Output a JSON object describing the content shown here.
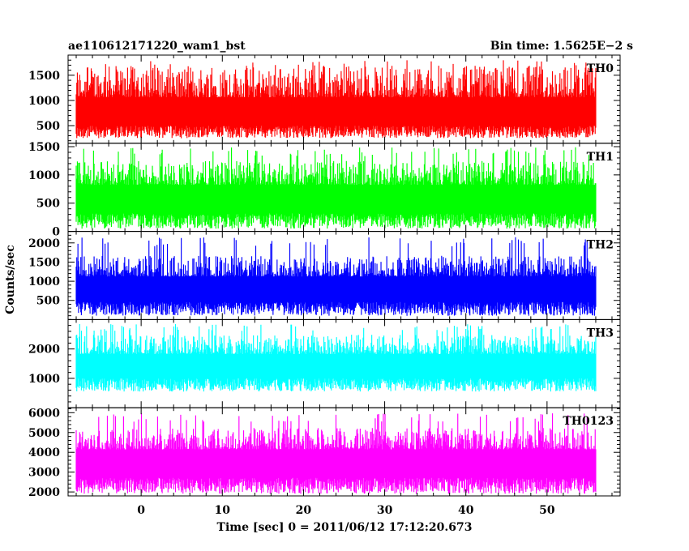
{
  "chart_data": {
    "type": "line",
    "title_left": "ae110612171220_wam1_bst",
    "title_right": "Bin time: 1.5625E−2 s",
    "xlabel": "Time [sec] 0 = 2011/06/12 17:12:20.673",
    "ylabel": "Counts/sec",
    "xlim": [
      -9,
      59
    ],
    "xticks": [
      0,
      10,
      20,
      30,
      40,
      50
    ],
    "x_data_range": [
      -8,
      56
    ],
    "bin_time_s": 0.015625,
    "panels": [
      {
        "name": "TH0",
        "color": "#ff0000",
        "ylim": [
          150,
          1900
        ],
        "yticks": [
          500,
          1000,
          1500
        ],
        "baseline": 800,
        "low_spread": 550,
        "high_spread": 1050,
        "occasional_peak": 1800
      },
      {
        "name": "TH1",
        "color": "#00ff00",
        "ylim": [
          0,
          1560
        ],
        "yticks": [
          0,
          500,
          1000,
          1500
        ],
        "baseline": 650,
        "low_spread": 600,
        "high_spread": 700,
        "occasional_peak": 1500
      },
      {
        "name": "TH2",
        "color": "#0000ff",
        "ylim": [
          0,
          2300
        ],
        "yticks": [
          500,
          1000,
          1500,
          2000
        ],
        "baseline": 900,
        "low_spread": 800,
        "high_spread": 900,
        "occasional_peak": 2150
      },
      {
        "name": "TH3",
        "color": "#00ffff",
        "ylim": [
          0,
          3000
        ],
        "yticks": [
          1000,
          2000
        ],
        "baseline": 1550,
        "low_spread": 1000,
        "high_spread": 1100,
        "occasional_peak": 2850
      },
      {
        "name": "TH0123",
        "color": "#ff00ff",
        "ylim": [
          1800,
          6250
        ],
        "yticks": [
          2000,
          3000,
          4000,
          5000,
          6000
        ],
        "baseline": 3700,
        "low_spread": 1800,
        "high_spread": 1800,
        "occasional_peak": 6000
      }
    ]
  }
}
